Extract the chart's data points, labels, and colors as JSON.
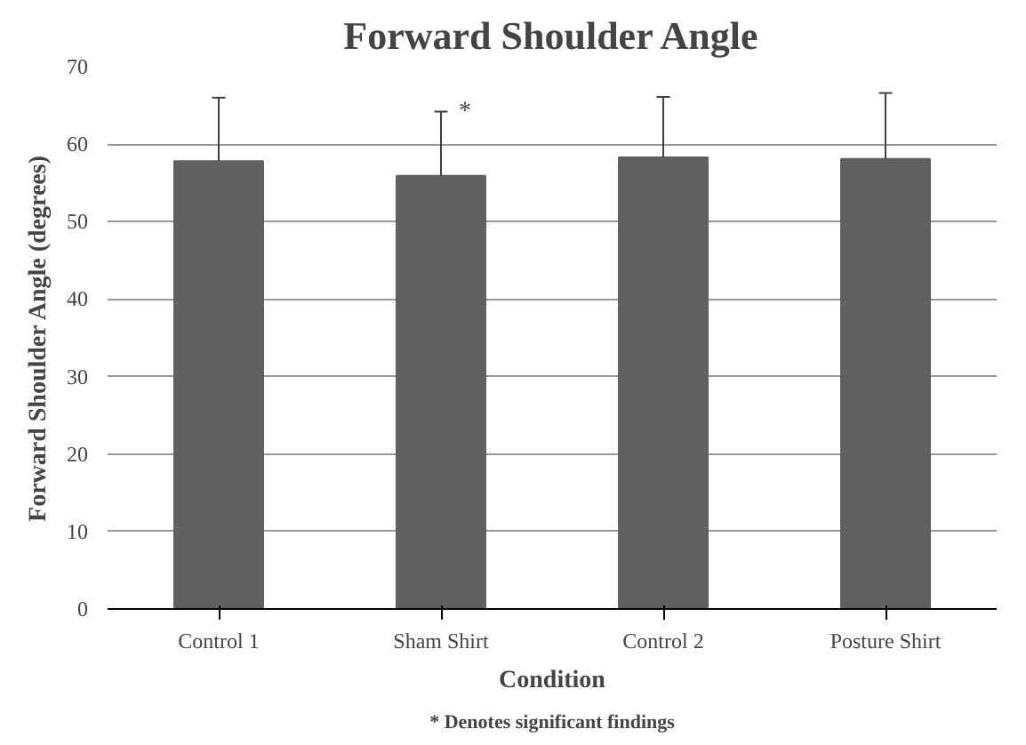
{
  "chart_data": {
    "type": "bar",
    "title": "Forward Shoulder Angle",
    "xlabel": "Condition",
    "ylabel": "Forward Shoulder Angle (degrees)",
    "categories": [
      "Control 1",
      "Sham Shirt",
      "Control 2",
      "Posture Shirt"
    ],
    "values": [
      57.8,
      55.9,
      58.3,
      58.1
    ],
    "errors": [
      [
        57.8,
        66.0
      ],
      [
        55.9,
        64.2
      ],
      [
        58.3,
        66.1
      ],
      [
        58.1,
        66.6
      ]
    ],
    "color": "#606060",
    "ylim": [
      0,
      70
    ],
    "yticks": [
      0,
      10,
      20,
      30,
      40,
      50,
      60,
      70
    ],
    "grid": "y",
    "annotations": [
      "*",
      "* Denotes significant findings"
    ]
  }
}
